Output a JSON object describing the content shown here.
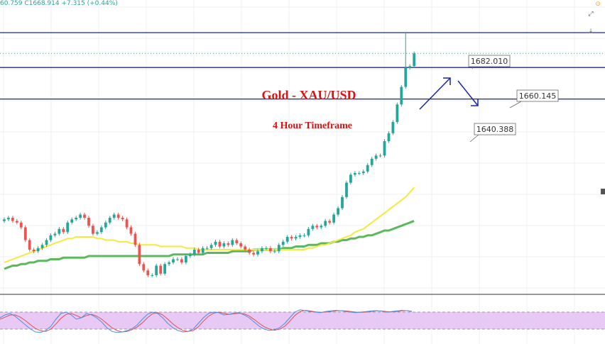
{
  "ohlc_readout": "60.759  C1668.914  +7.315 (+0.44%)",
  "icons": {
    "alert": "alert-icon",
    "expand": "expand-icon",
    "collapse": "collapse-icon"
  },
  "colors": {
    "bull": "#26a69a",
    "bear": "#ef5350",
    "level_line": "#1a24a8",
    "arrow": "#1a24a8",
    "ma_fast": "#f5e93c",
    "ma_slow": "#5cb85c",
    "title": "#e01010",
    "osc_fill": "#e8c8f5",
    "osc_k": "#4a90e2",
    "osc_d": "#e05050"
  },
  "chart_data": {
    "type": "candlestick",
    "title": "Gold - XAU/USD",
    "subtitle": "4 Hour Timeframe",
    "levels": [
      {
        "label": "1682.010",
        "value": 1682.01
      },
      {
        "label": "1660.145",
        "value": 1660.145
      },
      {
        "label": "1640.388",
        "value": 1640.388
      }
    ],
    "price_range": [
      1518,
      1698
    ],
    "closes": [
      1565,
      1566,
      1564,
      1563,
      1560,
      1552,
      1546,
      1545,
      1547,
      1549,
      1552,
      1555,
      1556,
      1559,
      1557,
      1563,
      1565,
      1566,
      1568,
      1566,
      1561,
      1556,
      1557,
      1560,
      1563,
      1566,
      1568,
      1566,
      1565,
      1560,
      1556,
      1549,
      1537,
      1533,
      1530,
      1530,
      1536,
      1531,
      1537,
      1538,
      1540,
      1540,
      1538,
      1542,
      1543,
      1546,
      1544,
      1547,
      1547,
      1549,
      1551,
      1548,
      1550,
      1549,
      1552,
      1550,
      1548,
      1546,
      1544,
      1543,
      1545,
      1547,
      1547,
      1545,
      1545,
      1549,
      1551,
      1554,
      1553,
      1554,
      1555,
      1555,
      1559,
      1561,
      1560,
      1561,
      1564,
      1563,
      1568,
      1572,
      1579,
      1588,
      1593,
      1594,
      1594,
      1595,
      1599,
      1603,
      1605,
      1605,
      1614,
      1619,
      1626,
      1637,
      1648,
      1660,
      1661,
      1669
    ],
    "ma_fast": [
      1538,
      1539,
      1540,
      1541,
      1542,
      1543,
      1544,
      1545,
      1546,
      1547,
      1548,
      1549,
      1550,
      1551,
      1552,
      1553,
      1553,
      1554,
      1554,
      1554,
      1554,
      1554,
      1553,
      1553,
      1552,
      1552,
      1552,
      1551,
      1551,
      1551,
      1550,
      1550,
      1549,
      1549,
      1549,
      1549,
      1549,
      1548,
      1548,
      1548,
      1548,
      1548,
      1548,
      1547,
      1547,
      1547,
      1546,
      1546,
      1546,
      1546,
      1546,
      1546,
      1546,
      1546,
      1546,
      1546,
      1546,
      1546,
      1546,
      1546,
      1546,
      1546,
      1546,
      1546,
      1546,
      1546,
      1546,
      1546,
      1546,
      1546,
      1546,
      1546,
      1547,
      1547,
      1548,
      1549,
      1549,
      1550,
      1551,
      1552,
      1553,
      1554,
      1555,
      1557,
      1558,
      1559,
      1561,
      1563,
      1565,
      1567,
      1569,
      1571,
      1573,
      1575,
      1577,
      1579,
      1582,
      1585
    ],
    "ma_slow": [
      1534,
      1535,
      1536,
      1536,
      1537,
      1537,
      1538,
      1538,
      1539,
      1539,
      1539,
      1540,
      1540,
      1540,
      1541,
      1541,
      1541,
      1541,
      1541,
      1541,
      1542,
      1542,
      1542,
      1542,
      1542,
      1542,
      1542,
      1542,
      1542,
      1542,
      1542,
      1542,
      1542,
      1542,
      1542,
      1542,
      1542,
      1542,
      1542,
      1542,
      1543,
      1543,
      1543,
      1543,
      1543,
      1543,
      1543,
      1543,
      1544,
      1544,
      1544,
      1544,
      1544,
      1544,
      1545,
      1545,
      1545,
      1545,
      1545,
      1546,
      1546,
      1546,
      1546,
      1546,
      1546,
      1546,
      1547,
      1547,
      1547,
      1548,
      1548,
      1548,
      1549,
      1549,
      1549,
      1550,
      1550,
      1550,
      1551,
      1551,
      1552,
      1552,
      1553,
      1553,
      1554,
      1554,
      1555,
      1555,
      1556,
      1557,
      1558,
      1558,
      1559,
      1560,
      1561,
      1562,
      1563,
      1564
    ],
    "oscillator": {
      "range": [
        0,
        100
      ],
      "bands": [
        20,
        80
      ],
      "k": [
        60,
        70,
        75,
        65,
        50,
        35,
        20,
        10,
        8,
        15,
        30,
        55,
        75,
        80,
        70,
        55,
        60,
        75,
        70,
        60,
        45,
        25,
        12,
        8,
        10,
        15,
        22,
        35,
        55,
        72,
        80,
        75,
        60,
        40,
        25,
        15,
        10,
        12,
        20,
        40,
        60,
        75,
        80,
        78,
        70,
        72,
        76,
        78,
        70,
        60,
        45,
        30,
        20,
        15,
        18,
        25,
        40,
        60,
        80,
        88,
        85,
        82,
        80,
        78,
        82,
        84,
        86,
        85,
        82,
        80,
        78,
        80,
        82,
        84,
        85,
        83,
        80,
        82,
        84,
        86,
        85,
        82
      ],
      "d": [
        55,
        62,
        70,
        70,
        62,
        50,
        35,
        22,
        14,
        12,
        20,
        38,
        58,
        72,
        75,
        68,
        60,
        68,
        72,
        66,
        55,
        40,
        25,
        15,
        10,
        12,
        18,
        28,
        42,
        60,
        74,
        78,
        70,
        55,
        38,
        25,
        15,
        12,
        15,
        28,
        48,
        65,
        76,
        80,
        76,
        72,
        74,
        76,
        74,
        66,
        54,
        40,
        28,
        20,
        16,
        20,
        30,
        48,
        68,
        82,
        86,
        84,
        81,
        79,
        80,
        82,
        84,
        85,
        84,
        82,
        80,
        79,
        80,
        82,
        84,
        84,
        82,
        81,
        82,
        84,
        85,
        83
      ]
    }
  }
}
